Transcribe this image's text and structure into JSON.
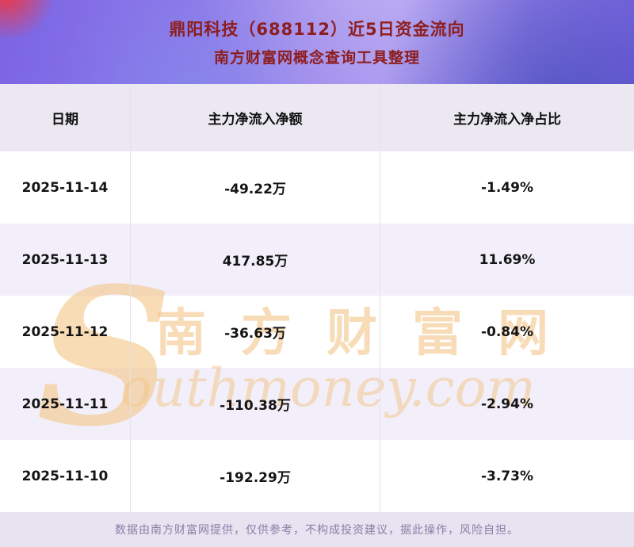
{
  "header": {
    "title_line1": "鼎阳科技（688112）近5日资金流向",
    "title_line2": "南方财富网概念查询工具整理"
  },
  "chart_data": {
    "type": "table",
    "title": "鼎阳科技（688112）近5日资金流向",
    "columns": [
      "日期",
      "主力净流入净额",
      "主力净流入净占比"
    ],
    "rows": [
      [
        "2025-11-14",
        "-49.22万",
        "-1.49%"
      ],
      [
        "2025-11-13",
        "417.85万",
        "11.69%"
      ],
      [
        "2025-11-12",
        "-36.63万",
        "-0.84%"
      ],
      [
        "2025-11-11",
        "-110.38万",
        "-2.94%"
      ],
      [
        "2025-11-10",
        "-192.29万",
        "-3.73%"
      ]
    ]
  },
  "watermark": {
    "s": "S",
    "cn": "南方财富网",
    "en_rest": "outhmoney.com",
    "brand_en": "Southmoney.com"
  },
  "footer": {
    "disclaimer": "数据由南方财富网提供，仅供参考，不构成投资建议，据此操作，风险自担。"
  },
  "colors": {
    "title_red": "#8e1d1d",
    "header_row_bg": "#ebe8f2",
    "row_alt_bg": "#f2effa",
    "footer_bg": "#e7e3f1",
    "watermark_tan": "#f3c78c",
    "background_purple": "#8a76e8"
  }
}
